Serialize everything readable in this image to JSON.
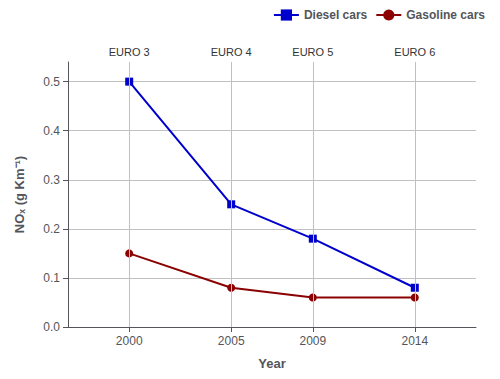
{
  "chart_data": {
    "type": "line",
    "x": [
      2000,
      2005,
      2009,
      2014
    ],
    "series": [
      {
        "name": "Diesel cars",
        "color": "#0000CC",
        "marker": "square",
        "line_style": "solid",
        "values": [
          0.5,
          0.25,
          0.18,
          0.08
        ]
      },
      {
        "name": "Gasoline cars",
        "color": "#8B0000",
        "marker": "circle",
        "line_style": "solid",
        "values": [
          0.15,
          0.08,
          0.06,
          0.06
        ]
      }
    ],
    "xlabel": "Year",
    "ylabel": "NOₓ (g Km⁻¹)",
    "xlim": [
      1997,
      2017
    ],
    "xticks": [
      2000,
      2005,
      2009,
      2014
    ],
    "ylim": [
      0.0,
      0.54
    ],
    "yticks": [
      {
        "value": 0.0,
        "label": "0.0"
      },
      0.1,
      0.2,
      0.3,
      0.4,
      0.5
    ],
    "grid": true,
    "legend": "upper right",
    "annotations": [
      {
        "text": "EURO 3",
        "x": 2000
      },
      {
        "text": "EURO 4",
        "x": 2005
      },
      {
        "text": "EURO 5",
        "x": 2009
      },
      {
        "text": "EURO 6",
        "x": 2014
      }
    ]
  }
}
